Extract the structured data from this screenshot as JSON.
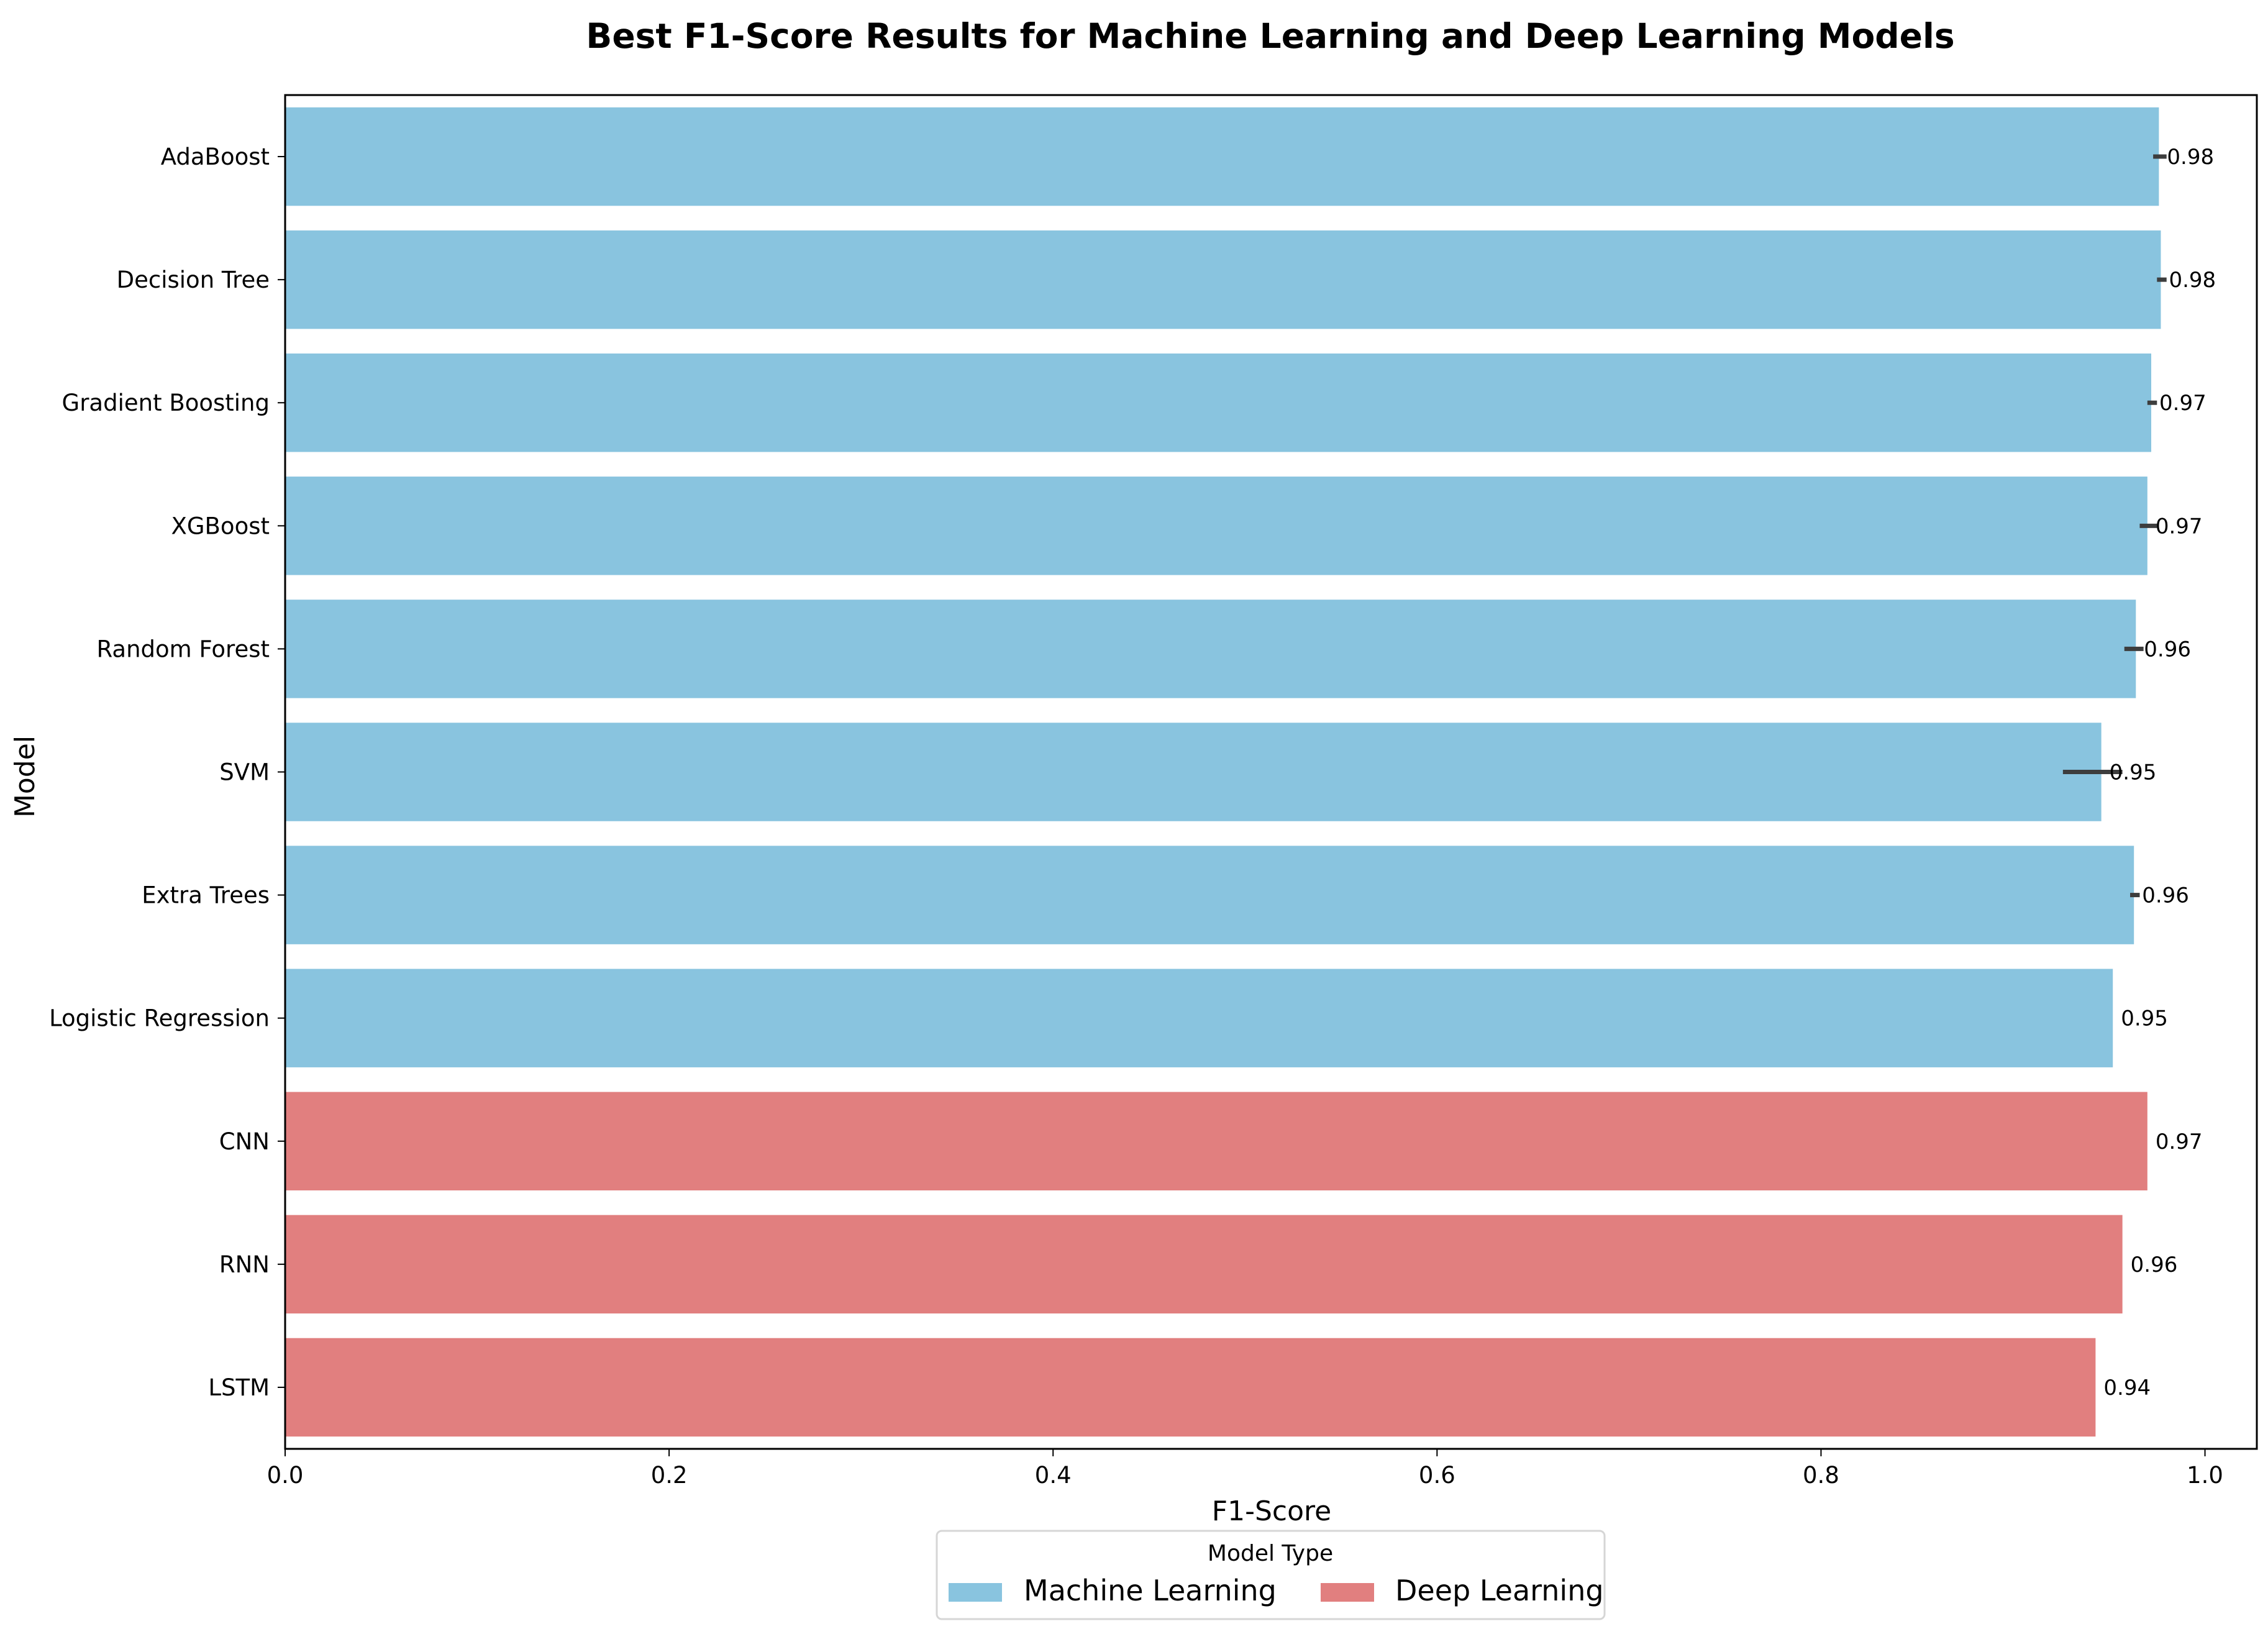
{
  "chart_data": {
    "type": "bar",
    "orientation": "horizontal",
    "title": "Best F1-Score Results for Machine Learning and Deep Learning Models",
    "xlabel": "F1-Score",
    "ylabel": "Model",
    "xlim": [
      0,
      1.027
    ],
    "xticks": [
      "0.0",
      "0.2",
      "0.4",
      "0.6",
      "0.8",
      "1.0"
    ],
    "grid": false,
    "legend": {
      "title": "Model Type",
      "placement": "bottom-center",
      "entries": [
        {
          "name": "Machine Learning",
          "color": "#89c4df"
        },
        {
          "name": "Deep Learning",
          "color": "#e17f7f"
        }
      ]
    },
    "bars": [
      {
        "category": "AdaBoost",
        "value": 0.976,
        "label": "0.98",
        "type": "Machine Learning",
        "err": [
          0.973,
          0.98
        ]
      },
      {
        "category": "Decision Tree",
        "value": 0.977,
        "label": "0.98",
        "type": "Machine Learning",
        "err": [
          0.975,
          0.98
        ]
      },
      {
        "category": "Gradient Boosting",
        "value": 0.972,
        "label": "0.97",
        "type": "Machine Learning",
        "err": [
          0.97,
          0.975
        ]
      },
      {
        "category": "XGBoost",
        "value": 0.97,
        "label": "0.97",
        "type": "Machine Learning",
        "err": [
          0.966,
          0.975
        ]
      },
      {
        "category": "Random Forest",
        "value": 0.964,
        "label": "0.96",
        "type": "Machine Learning",
        "err": [
          0.958,
          0.968
        ]
      },
      {
        "category": "SVM",
        "value": 0.946,
        "label": "0.95",
        "type": "Machine Learning",
        "err": [
          0.926,
          0.957
        ]
      },
      {
        "category": "Extra Trees",
        "value": 0.963,
        "label": "0.96",
        "type": "Machine Learning",
        "err": [
          0.961,
          0.966
        ]
      },
      {
        "category": "Logistic Regression",
        "value": 0.952,
        "label": "0.95",
        "type": "Machine Learning",
        "err": null
      },
      {
        "category": "CNN",
        "value": 0.97,
        "label": "0.97",
        "type": "Deep Learning",
        "err": null
      },
      {
        "category": "RNN",
        "value": 0.957,
        "label": "0.96",
        "type": "Deep Learning",
        "err": null
      },
      {
        "category": "LSTM",
        "value": 0.943,
        "label": "0.94",
        "type": "Deep Learning",
        "err": null
      }
    ]
  }
}
